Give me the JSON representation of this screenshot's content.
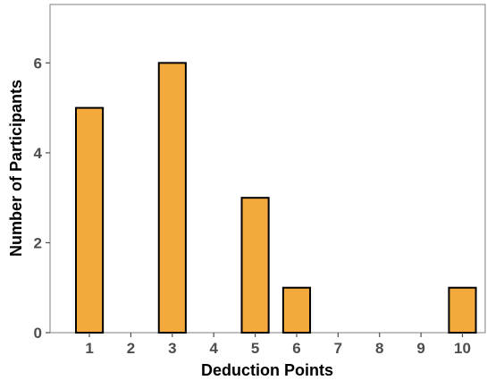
{
  "chart_data": {
    "type": "bar",
    "xlabel": "Deduction Points",
    "ylabel": "Number of Participants",
    "x_ticks": [
      "1",
      "2",
      "3",
      "4",
      "5",
      "6",
      "7",
      "8",
      "9",
      "10"
    ],
    "y_ticks": [
      "0",
      "2",
      "4",
      "6"
    ],
    "categories": [
      "1",
      "3",
      "5",
      "6",
      "10"
    ],
    "x": [
      1,
      3,
      5,
      6,
      10
    ],
    "values": [
      5,
      6,
      3,
      1,
      1
    ],
    "xlim": [
      0.05,
      10.55
    ],
    "ylim": [
      0,
      7.3
    ],
    "grid": false,
    "legend": "none",
    "bar_color": "#F4A93C",
    "bar_outline": "#000000"
  }
}
